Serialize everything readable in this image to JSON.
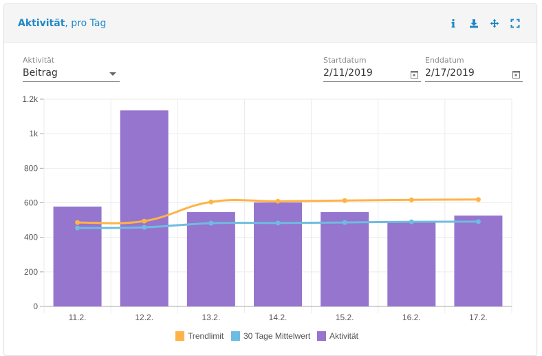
{
  "header": {
    "title_bold": "Aktivität",
    "title_rest": ", pro Tag",
    "icons": [
      "info-icon",
      "download-icon",
      "move-icon",
      "fullscreen-icon"
    ]
  },
  "filters": {
    "activity": {
      "label": "Aktivität",
      "value": "Beitrag"
    },
    "start": {
      "label": "Startdatum",
      "value": "2/11/2019"
    },
    "end": {
      "label": "Enddatum",
      "value": "2/17/2019"
    }
  },
  "colors": {
    "trend": "#ffb347",
    "mean": "#6fbce0",
    "activity": "#9575cd",
    "accent": "#1e88c7"
  },
  "chart_data": {
    "type": "bar",
    "title": "Aktivität, pro Tag",
    "xlabel": "",
    "ylabel": "",
    "ylim": [
      0,
      1200
    ],
    "yticks": [
      "0",
      "200",
      "400",
      "600",
      "800",
      "1k",
      "1.2k"
    ],
    "categories": [
      "11.2.",
      "12.2.",
      "13.2.",
      "14.2.",
      "15.2.",
      "16.2.",
      "17.2."
    ],
    "series": [
      {
        "name": "Trendlimit",
        "type": "line",
        "values": [
          486,
          494,
          605,
          609,
          613,
          617,
          619
        ]
      },
      {
        "name": "30 Tage Mittelwert",
        "type": "line",
        "values": [
          454,
          458,
          482,
          483,
          486,
          490,
          491
        ]
      },
      {
        "name": "Aktivität",
        "type": "bar",
        "values": [
          578,
          1135,
          546,
          602,
          546,
          494,
          526
        ]
      }
    ],
    "legend_position": "bottom",
    "grid": true
  }
}
